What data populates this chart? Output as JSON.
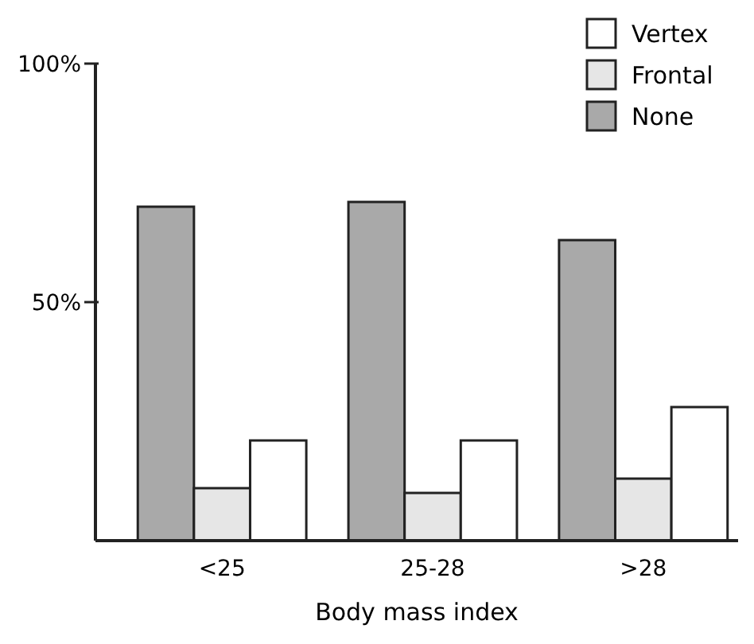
{
  "chart_data": {
    "type": "bar",
    "xlabel": "Body mass index",
    "categories": [
      "<25",
      "25-28",
      ">28"
    ],
    "series": [
      {
        "name": "None",
        "color": "#a9a9a9",
        "values": [
          70,
          71,
          63
        ]
      },
      {
        "name": "Frontal",
        "color": "#e6e6e6",
        "values": [
          11,
          10,
          13
        ]
      },
      {
        "name": "Vertex",
        "color": "#ffffff",
        "values": [
          21,
          21,
          28
        ]
      }
    ],
    "ylim": [
      0,
      100
    ],
    "yticks": [
      {
        "value": 50,
        "label": "50%"
      },
      {
        "value": 100,
        "label": "100%"
      }
    ],
    "legend": "top right",
    "grid": false
  }
}
